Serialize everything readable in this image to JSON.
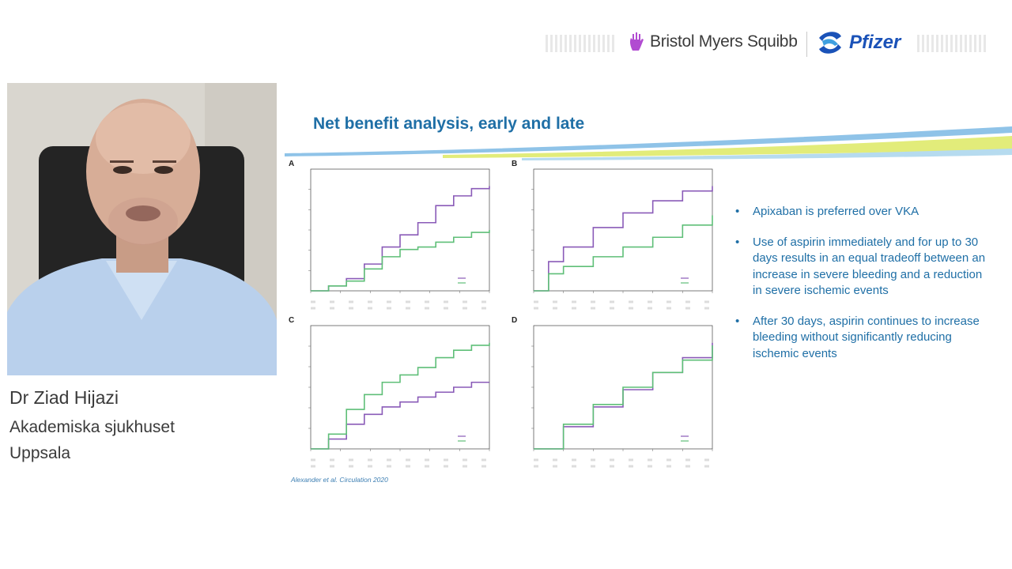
{
  "header": {
    "bms_logo_text": "Bristol Myers Squibb",
    "pfizer_logo_text": "Pfizer"
  },
  "speaker": {
    "name": "Dr Ziad Hijazi",
    "organization": "Akademiska sjukhuset",
    "city": "Uppsala"
  },
  "slide": {
    "title": "Net benefit analysis, early and late",
    "bullets": [
      "Apixaban is preferred over VKA",
      "Use of aspirin immediately and for up to 30 days results in an equal tradeoff between an increase in severe bleeding and a reduction in severe ischemic events",
      "After 30 days, aspirin continues to increase bleeding without significantly reducing ischemic events"
    ],
    "citation": "Alexander et al. Circulation 2020"
  },
  "chart_data": [
    {
      "panel": "A",
      "type": "line",
      "xlim": [
        0,
        30
      ],
      "ylim": [
        0,
        0.05
      ],
      "series": [
        {
          "name": "Aspirin",
          "color": "#8a5bb8",
          "x": [
            0,
            3,
            6,
            9,
            12,
            15,
            18,
            21,
            24,
            27,
            30
          ],
          "y": [
            0,
            0.002,
            0.005,
            0.011,
            0.018,
            0.023,
            0.028,
            0.035,
            0.039,
            0.042,
            0.043
          ]
        },
        {
          "name": "Placebo",
          "color": "#5fbf78",
          "x": [
            0,
            3,
            6,
            9,
            12,
            15,
            18,
            21,
            24,
            27,
            30
          ],
          "y": [
            0,
            0.002,
            0.004,
            0.009,
            0.014,
            0.017,
            0.018,
            0.02,
            0.022,
            0.024,
            0.025
          ]
        }
      ]
    },
    {
      "panel": "B",
      "type": "line",
      "xlim": [
        0,
        6
      ],
      "ylim": [
        0,
        0.05
      ],
      "series": [
        {
          "name": "Aspirin",
          "color": "#8a5bb8",
          "x": [
            0,
            0.5,
            1,
            2,
            3,
            4,
            5,
            6
          ],
          "y": [
            0,
            0.012,
            0.018,
            0.026,
            0.032,
            0.037,
            0.041,
            0.043
          ]
        },
        {
          "name": "Placebo",
          "color": "#5fbf78",
          "x": [
            0,
            0.5,
            1,
            2,
            3,
            4,
            5,
            6
          ],
          "y": [
            0,
            0.007,
            0.01,
            0.014,
            0.018,
            0.022,
            0.027,
            0.031
          ]
        }
      ]
    },
    {
      "panel": "C",
      "type": "line",
      "xlim": [
        0,
        30
      ],
      "ylim": [
        0,
        0.05
      ],
      "series": [
        {
          "name": "Aspirin",
          "color": "#8a5bb8",
          "x": [
            0,
            3,
            6,
            9,
            12,
            15,
            18,
            21,
            24,
            27,
            30
          ],
          "y": [
            0,
            0.004,
            0.01,
            0.014,
            0.017,
            0.019,
            0.021,
            0.023,
            0.025,
            0.027,
            0.027
          ]
        },
        {
          "name": "Placebo",
          "color": "#5fbf78",
          "x": [
            0,
            3,
            6,
            9,
            12,
            15,
            18,
            21,
            24,
            27,
            30
          ],
          "y": [
            0,
            0.006,
            0.016,
            0.022,
            0.027,
            0.03,
            0.033,
            0.037,
            0.04,
            0.042,
            0.043
          ]
        }
      ]
    },
    {
      "panel": "D",
      "type": "line",
      "xlim": [
        0,
        6
      ],
      "ylim": [
        0,
        0.05
      ],
      "series": [
        {
          "name": "Aspirin",
          "color": "#8a5bb8",
          "x": [
            0,
            1,
            2,
            3,
            4,
            5,
            6
          ],
          "y": [
            0,
            0.009,
            0.017,
            0.024,
            0.031,
            0.037,
            0.043
          ]
        },
        {
          "name": "Placebo",
          "color": "#5fbf78",
          "x": [
            0,
            1,
            2,
            3,
            4,
            5,
            6
          ],
          "y": [
            0,
            0.01,
            0.018,
            0.025,
            0.031,
            0.036,
            0.042
          ]
        }
      ]
    }
  ]
}
